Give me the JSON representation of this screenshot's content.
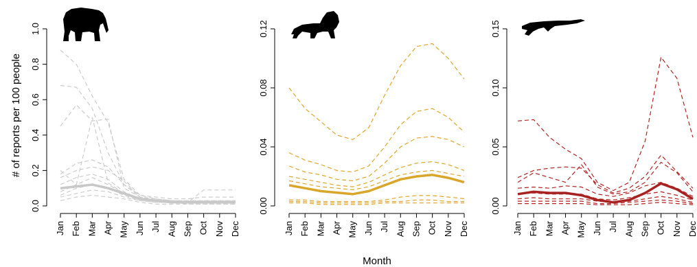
{
  "figure": {
    "ylabel": "# of reports per 100 people",
    "xlabel": "Month"
  },
  "chart_data": [
    {
      "type": "line",
      "animal": "elephant-silhouette",
      "x": [
        "Jan",
        "Feb",
        "Mar",
        "Apr",
        "May",
        "Jun",
        "Jul",
        "Aug",
        "Sep",
        "Oct",
        "Nov",
        "Dec"
      ],
      "ylim": [
        0,
        1.0
      ],
      "yticks": [
        "0.0",
        "0.2",
        "0.4",
        "0.6",
        "0.8",
        "1.0"
      ],
      "mean_color": "#c8c8c8",
      "line_color": "#cccccc",
      "series": [
        {
          "values": [
            0.88,
            0.8,
            0.62,
            0.47,
            0.15,
            0.06,
            0.04,
            0.03,
            0.03,
            0.03,
            0.03,
            0.03
          ]
        },
        {
          "values": [
            0.68,
            0.67,
            0.55,
            0.3,
            0.12,
            0.05,
            0.03,
            0.03,
            0.02,
            0.02,
            0.02,
            0.02
          ]
        },
        {
          "values": [
            0.45,
            0.57,
            0.48,
            0.49,
            0.1,
            0.05,
            0.03,
            0.03,
            0.02,
            0.09,
            0.09,
            0.09
          ]
        },
        {
          "values": [
            0.18,
            0.24,
            0.26,
            0.22,
            0.12,
            0.06,
            0.05,
            0.04,
            0.04,
            0.05,
            0.05,
            0.05
          ]
        },
        {
          "values": [
            0.16,
            0.2,
            0.22,
            0.2,
            0.14,
            0.05,
            0.04,
            0.03,
            0.03,
            0.03,
            0.03,
            0.03
          ]
        },
        {
          "values": [
            0.12,
            0.16,
            0.18,
            0.15,
            0.08,
            0.04,
            0.03,
            0.03,
            0.02,
            0.02,
            0.02,
            0.02
          ]
        },
        {
          "values": [
            0.08,
            0.12,
            0.16,
            0.12,
            0.07,
            0.04,
            0.03,
            0.02,
            0.02,
            0.02,
            0.02,
            0.02
          ]
        },
        {
          "values": [
            0.06,
            0.1,
            0.12,
            0.1,
            0.06,
            0.03,
            0.02,
            0.02,
            0.02,
            0.02,
            0.02,
            0.02
          ]
        },
        {
          "values": [
            0.05,
            0.07,
            0.09,
            0.08,
            0.05,
            0.03,
            0.02,
            0.02,
            0.01,
            0.01,
            0.01,
            0.01
          ]
        },
        {
          "values": [
            0.03,
            0.05,
            0.06,
            0.05,
            0.04,
            0.02,
            0.01,
            0.01,
            0.01,
            0.01,
            0.01,
            0.01
          ]
        },
        {
          "values": [
            0.2,
            0.12,
            0.5,
            0.13,
            0.07,
            0.04,
            0.03,
            0.03,
            0.02,
            0.02,
            0.02,
            0.02
          ]
        }
      ],
      "mean": [
        0.1,
        0.11,
        0.12,
        0.1,
        0.07,
        0.04,
        0.03,
        0.02,
        0.02,
        0.02,
        0.02,
        0.02
      ]
    },
    {
      "type": "line",
      "animal": "lion-silhouette",
      "x": [
        "Jan",
        "Feb",
        "Mar",
        "Apr",
        "May",
        "Jun",
        "Jul",
        "Aug",
        "Sep",
        "Oct",
        "Nov",
        "Dec"
      ],
      "ylim": [
        0,
        0.12
      ],
      "yticks": [
        "0.00",
        "0.04",
        "0.08",
        "0.12"
      ],
      "mean_color": "#d9a62a",
      "line_color": "#e0a52a",
      "series": [
        {
          "values": [
            0.08,
            0.066,
            0.057,
            0.048,
            0.045,
            0.053,
            0.075,
            0.095,
            0.108,
            0.11,
            0.1,
            0.086
          ]
        },
        {
          "values": [
            0.036,
            0.031,
            0.028,
            0.024,
            0.023,
            0.027,
            0.04,
            0.055,
            0.064,
            0.066,
            0.06,
            0.05
          ]
        },
        {
          "values": [
            0.027,
            0.023,
            0.021,
            0.018,
            0.017,
            0.02,
            0.029,
            0.04,
            0.046,
            0.047,
            0.045,
            0.04
          ]
        },
        {
          "values": [
            0.02,
            0.018,
            0.016,
            0.014,
            0.013,
            0.016,
            0.021,
            0.026,
            0.029,
            0.03,
            0.028,
            0.024
          ]
        },
        {
          "values": [
            0.017,
            0.015,
            0.013,
            0.012,
            0.011,
            0.013,
            0.017,
            0.021,
            0.023,
            0.024,
            0.022,
            0.02
          ]
        },
        {
          "values": [
            0.004,
            0.004,
            0.003,
            0.003,
            0.003,
            0.003,
            0.004,
            0.006,
            0.007,
            0.007,
            0.006,
            0.005
          ]
        },
        {
          "values": [
            0.003,
            0.003,
            0.002,
            0.002,
            0.002,
            0.002,
            0.003,
            0.003,
            0.004,
            0.004,
            0.003,
            0.003
          ]
        },
        {
          "values": [
            0.002,
            0.002,
            0.001,
            0.001,
            0.001,
            0.001,
            0.002,
            0.002,
            0.002,
            0.002,
            0.002,
            0.002
          ]
        }
      ],
      "mean": [
        0.014,
        0.012,
        0.01,
        0.009,
        0.008,
        0.01,
        0.014,
        0.018,
        0.02,
        0.021,
        0.019,
        0.016
      ]
    },
    {
      "type": "line",
      "animal": "crocodile-silhouette",
      "x": [
        "Jan",
        "Feb",
        "Mar",
        "Apr",
        "May",
        "Jun",
        "Jul",
        "Aug",
        "Sep",
        "Oct",
        "Nov",
        "Dec"
      ],
      "ylim": [
        0,
        0.15
      ],
      "yticks": [
        "0.00",
        "0.05",
        "0.10",
        "0.15"
      ],
      "mean_color": "#a82222",
      "line_color": "#b22222",
      "series": [
        {
          "values": [
            0.072,
            0.073,
            0.058,
            0.048,
            0.04,
            0.02,
            0.013,
            0.02,
            0.055,
            0.126,
            0.108,
            0.058
          ]
        },
        {
          "values": [
            0.024,
            0.03,
            0.032,
            0.033,
            0.032,
            0.018,
            0.011,
            0.015,
            0.025,
            0.043,
            0.029,
            0.015
          ]
        },
        {
          "values": [
            0.02,
            0.028,
            0.024,
            0.02,
            0.035,
            0.016,
            0.01,
            0.012,
            0.02,
            0.037,
            0.028,
            0.012
          ]
        },
        {
          "values": [
            0.015,
            0.016,
            0.015,
            0.017,
            0.016,
            0.01,
            0.008,
            0.011,
            0.017,
            0.02,
            0.015,
            0.008
          ]
        },
        {
          "values": [
            0.01,
            0.011,
            0.01,
            0.01,
            0.01,
            0.006,
            0.005,
            0.007,
            0.01,
            0.012,
            0.009,
            0.005
          ]
        },
        {
          "values": [
            0.006,
            0.007,
            0.006,
            0.006,
            0.006,
            0.004,
            0.003,
            0.004,
            0.006,
            0.008,
            0.006,
            0.003
          ]
        },
        {
          "values": [
            0.004,
            0.004,
            0.004,
            0.004,
            0.004,
            0.002,
            0.002,
            0.003,
            0.004,
            0.005,
            0.004,
            0.002
          ]
        },
        {
          "values": [
            0.002,
            0.002,
            0.002,
            0.002,
            0.002,
            0.001,
            0.001,
            0.001,
            0.002,
            0.003,
            0.002,
            0.001
          ]
        }
      ],
      "mean": [
        0.01,
        0.012,
        0.011,
        0.011,
        0.009,
        0.005,
        0.003,
        0.005,
        0.011,
        0.019,
        0.014,
        0.006
      ]
    }
  ]
}
